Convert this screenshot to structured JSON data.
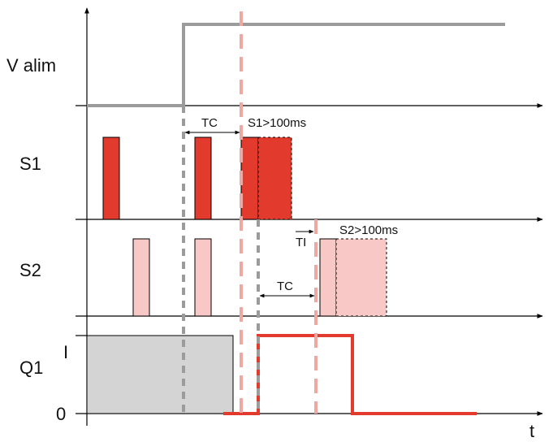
{
  "rows": {
    "valim": "V alim",
    "s1": "S1",
    "s2": "S2",
    "q1": "Q1"
  },
  "q1_levels": {
    "high": "I",
    "low": "0"
  },
  "time_axis_label": "t",
  "annotations": {
    "tc_1": "TC",
    "s1_gt": "S1>100ms",
    "ti": "TI",
    "s2_gt": "S2>100ms",
    "tc_2": "TC"
  },
  "colors": {
    "axis": "#000000",
    "supply": "#9b9b9b",
    "s1_pulse": "#e33a2e",
    "s2_pulse": "#f7c8c6",
    "q1_fill": "#d4d4d4",
    "q1_output": "#e33a2e",
    "marker_pink": "#f0a7a1",
    "marker_grey": "#9b9b9b"
  }
}
